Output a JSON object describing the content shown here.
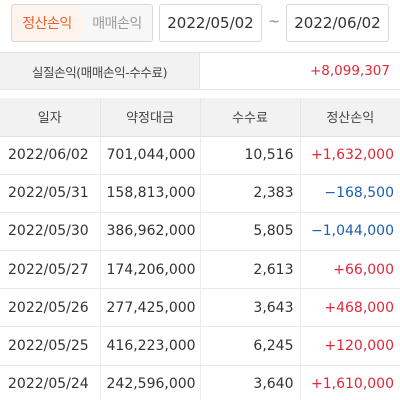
{
  "tabs": {
    "settlement_pl": "정산손익",
    "trade_pl": "매매손익"
  },
  "date_range": {
    "from": "2022/05/02",
    "separator": "~",
    "to": "2022/06/02"
  },
  "summary": {
    "label": "실질손익(매매손익-수수료)",
    "value": "+8,099,307"
  },
  "table": {
    "headers": [
      "일자",
      "약정대금",
      "수수료",
      "정산손익"
    ],
    "rows": [
      {
        "date": "2022/06/02",
        "amount": "701,044,000",
        "fee": "10,516",
        "pl": "+1,632,000",
        "sign": "pos"
      },
      {
        "date": "2022/05/31",
        "amount": "158,813,000",
        "fee": "2,383",
        "pl": "−168,500",
        "sign": "neg"
      },
      {
        "date": "2022/05/30",
        "amount": "386,962,000",
        "fee": "5,805",
        "pl": "−1,044,000",
        "sign": "neg"
      },
      {
        "date": "2022/05/27",
        "amount": "174,206,000",
        "fee": "2,613",
        "pl": "+66,000",
        "sign": "pos"
      },
      {
        "date": "2022/05/26",
        "amount": "277,425,000",
        "fee": "3,643",
        "pl": "+468,000",
        "sign": "pos"
      },
      {
        "date": "2022/05/25",
        "amount": "416,223,000",
        "fee": "6,245",
        "pl": "+120,000",
        "sign": "pos"
      },
      {
        "date": "2022/05/24",
        "amount": "242,596,000",
        "fee": "3,640",
        "pl": "+1,610,000",
        "sign": "pos"
      }
    ]
  }
}
